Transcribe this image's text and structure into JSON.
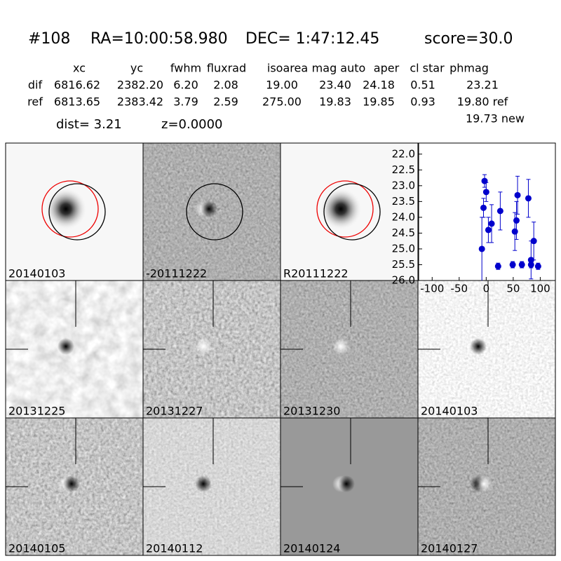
{
  "header": {
    "id": "#108",
    "ra": "RA=10:00:58.980",
    "dec": "DEC= 1:47:12.45",
    "score": "score=30.0"
  },
  "table": {
    "columns": [
      "xc",
      "yc",
      "fwhm",
      "fluxrad",
      "isoarea",
      "mag auto",
      "aper",
      "cl star",
      "phmag"
    ],
    "rows": [
      [
        "dif",
        "6816.62",
        "2382.20",
        "6.20",
        "2.08",
        "19.00",
        "23.40",
        "24.18",
        "0.51",
        "23.21"
      ],
      [
        "ref",
        "6813.65",
        "2383.42",
        "3.79",
        "2.59",
        "275.00",
        "19.83",
        "19.85",
        "0.93",
        "19.80 ref"
      ]
    ],
    "extra": "19.73 new",
    "dist": "dist=  3.21",
    "z": "z=0.0000"
  },
  "panels": [
    "20140103",
    "-20111222",
    "R20111222",
    "20131225",
    "20131227",
    "20131230",
    "20140103",
    "20140105",
    "20140112",
    "20140124",
    "20140127"
  ],
  "chart_data": {
    "type": "scatter",
    "color": "#0000cc",
    "x": [
      -8,
      -5,
      -3,
      0,
      4,
      10,
      22,
      26,
      49,
      53,
      56,
      58,
      66,
      78,
      83,
      83,
      88,
      96
    ],
    "values": [
      25.0,
      23.7,
      22.85,
      23.2,
      24.4,
      24.2,
      25.55,
      23.8,
      25.5,
      24.45,
      24.1,
      23.3,
      25.5,
      23.4,
      25.35,
      25.5,
      24.75,
      25.55
    ],
    "errors": [
      1.0,
      0.3,
      0.2,
      0.3,
      0.4,
      0.6,
      0.1,
      0.6,
      0.1,
      0.6,
      0.6,
      0.6,
      0.1,
      0.6,
      0.6,
      0.1,
      0.6,
      0.1
    ],
    "xlim": [
      -125,
      128
    ],
    "ylim": [
      26,
      21.65
    ],
    "xticks": [
      -100,
      -50,
      0,
      50,
      100
    ],
    "yticks": [
      {
        "value": 22,
        "label": "22.0"
      },
      22.5,
      {
        "value": 23,
        "label": "23.0"
      },
      23.5,
      {
        "value": 24,
        "label": "24.0"
      },
      24.5,
      {
        "value": 25,
        "label": "25.0"
      },
      25.5,
      {
        "value": 26,
        "label": "26.0"
      }
    ]
  }
}
